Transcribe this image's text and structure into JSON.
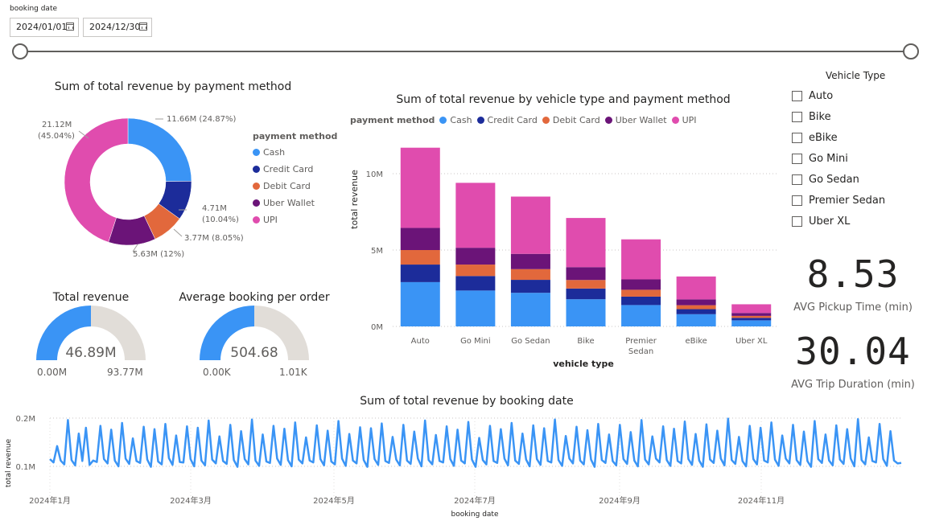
{
  "slicer": {
    "title": "booking date",
    "start_date": "2024/01/01",
    "end_date": "2024/12/30"
  },
  "colors": {
    "Cash": "#3a94f5",
    "Credit Card": "#1c2c9a",
    "Debit Card": "#e2683c",
    "Uber Wallet": "#6b1478",
    "UPI": "#e04cae",
    "gauge_track": "#e1ddd8",
    "gauge_fill": "#3a94f5"
  },
  "donut": {
    "title": "Sum of total revenue by payment method",
    "legend_title": "payment method",
    "legend": [
      "Cash",
      "Credit Card",
      "Debit Card",
      "Uber Wallet",
      "UPI"
    ],
    "labels": {
      "cash": "11.66M (24.87%)",
      "credit_line1": "4.71M",
      "credit_line2": "(10.04%)",
      "debit": "3.77M (8.05%)",
      "wallet": "5.63M (12%)",
      "upi_line1": "21.12M",
      "upi_line2": "(45.04%)"
    }
  },
  "gauges": {
    "revenue": {
      "title": "Total revenue",
      "value_label": "46.89M",
      "min_label": "0.00M",
      "max_label": "93.77M",
      "fraction": 0.5
    },
    "booking": {
      "title": "Average booking per order",
      "value_label": "504.68",
      "min_label": "0.00K",
      "max_label": "1.01K",
      "fraction": 0.5
    }
  },
  "bar": {
    "title": "Sum of total revenue by vehicle type and payment method",
    "legend_title": "payment method",
    "ylabel": "total revenue",
    "xlabel": "vehicle type",
    "yticks": [
      "0M",
      "5M",
      "10M"
    ],
    "categories": [
      [
        "Auto"
      ],
      [
        "Go Mini"
      ],
      [
        "Go Sedan"
      ],
      [
        "Bike"
      ],
      [
        "Premier",
        "Sedan"
      ],
      [
        "eBike"
      ],
      [
        "Uber XL"
      ]
    ]
  },
  "vehicle_slicer": {
    "title": "Vehicle Type",
    "options": [
      "Auto",
      "Bike",
      "eBike",
      "Go Mini",
      "Go Sedan",
      "Premier Sedan",
      "Uber XL"
    ]
  },
  "cards": {
    "pickup": {
      "value": "8.53",
      "label": "AVG Pickup Time (min)"
    },
    "trip": {
      "value": "30.04",
      "label": "AVG Trip Duration (min)"
    }
  },
  "line": {
    "title": "Sum of total revenue by booking date",
    "ylabel": "total revenue",
    "xlabel": "booking date",
    "yticks": [
      "0.1M",
      "0.2M"
    ],
    "xticks": [
      "2024年1月",
      "2024年3月",
      "2024年5月",
      "2024年7月",
      "2024年9月",
      "2024年11月"
    ]
  },
  "chart_data": [
    {
      "type": "pie",
      "title": "Sum of total revenue by payment method",
      "categories": [
        "Cash",
        "Credit Card",
        "Debit Card",
        "Uber Wallet",
        "UPI"
      ],
      "values": [
        11.66,
        4.71,
        3.77,
        5.63,
        21.12
      ],
      "unit": "M"
    },
    {
      "type": "bar",
      "stacked": true,
      "title": "Sum of total revenue by vehicle type and payment method",
      "xlabel": "vehicle type",
      "ylabel": "total revenue",
      "categories": [
        "Auto",
        "Go Mini",
        "Go Sedan",
        "Bike",
        "Premier Sedan",
        "eBike",
        "Uber XL"
      ],
      "ylim": [
        0,
        12
      ],
      "unit": "M",
      "series": [
        {
          "name": "Cash",
          "values": [
            2.9,
            2.35,
            2.2,
            1.78,
            1.4,
            0.8,
            0.4
          ]
        },
        {
          "name": "Credit Card",
          "values": [
            1.15,
            0.95,
            0.85,
            0.7,
            0.55,
            0.33,
            0.16
          ]
        },
        {
          "name": "Debit Card",
          "values": [
            0.95,
            0.75,
            0.7,
            0.56,
            0.45,
            0.26,
            0.13
          ]
        },
        {
          "name": "Uber Wallet",
          "values": [
            1.45,
            1.1,
            1.0,
            0.84,
            0.68,
            0.38,
            0.19
          ]
        },
        {
          "name": "UPI",
          "values": [
            5.25,
            4.25,
            3.75,
            3.22,
            2.62,
            1.5,
            0.57
          ]
        }
      ],
      "legend": "top"
    },
    {
      "type": "line",
      "title": "Sum of total revenue by booking date",
      "xlabel": "booking date",
      "ylabel": "total revenue",
      "x_range": [
        "2024-01-01",
        "2024-12-30"
      ],
      "ylim": [
        0.07,
        0.2
      ],
      "unit": "M",
      "values": [
        0.115,
        0.108,
        0.142,
        0.112,
        0.104,
        0.196,
        0.113,
        0.102,
        0.168,
        0.111,
        0.18,
        0.103,
        0.112,
        0.109,
        0.184,
        0.115,
        0.106,
        0.176,
        0.112,
        0.1,
        0.19,
        0.116,
        0.105,
        0.158,
        0.111,
        0.107,
        0.182,
        0.114,
        0.099,
        0.177,
        0.11,
        0.104,
        0.188,
        0.117,
        0.103,
        0.164,
        0.109,
        0.108,
        0.183,
        0.115,
        0.1,
        0.18,
        0.112,
        0.102,
        0.195,
        0.114,
        0.106,
        0.162,
        0.111,
        0.105,
        0.186,
        0.113,
        0.099,
        0.173,
        0.115,
        0.104,
        0.197,
        0.112,
        0.101,
        0.166,
        0.11,
        0.107,
        0.184,
        0.116,
        0.103,
        0.178,
        0.113,
        0.1,
        0.191,
        0.114,
        0.106,
        0.16,
        0.112,
        0.108,
        0.185,
        0.115,
        0.102,
        0.174,
        0.11,
        0.104,
        0.194,
        0.116,
        0.101,
        0.167,
        0.112,
        0.106,
        0.181,
        0.113,
        0.099,
        0.179,
        0.115,
        0.103,
        0.189,
        0.111,
        0.107,
        0.161,
        0.114,
        0.102,
        0.186,
        0.112,
        0.105,
        0.172,
        0.116,
        0.1,
        0.195,
        0.113,
        0.104,
        0.165,
        0.111,
        0.108,
        0.183,
        0.115,
        0.101,
        0.176,
        0.112,
        0.106,
        0.192,
        0.114,
        0.099,
        0.159,
        0.113,
        0.104,
        0.184,
        0.111,
        0.107,
        0.177,
        0.116,
        0.102,
        0.19,
        0.112,
        0.105,
        0.168,
        0.114,
        0.1,
        0.185,
        0.115,
        0.103,
        0.179,
        0.111,
        0.108,
        0.197,
        0.113,
        0.101,
        0.163,
        0.116,
        0.106,
        0.182,
        0.112,
        0.104,
        0.175,
        0.114,
        0.099,
        0.188,
        0.113,
        0.107,
        0.166,
        0.111,
        0.102,
        0.186,
        0.115,
        0.105,
        0.171,
        0.112,
        0.1,
        0.196,
        0.114,
        0.104,
        0.162,
        0.116,
        0.108,
        0.183,
        0.113,
        0.101,
        0.178,
        0.111,
        0.106,
        0.193,
        0.115,
        0.103,
        0.167,
        0.112,
        0.099,
        0.187,
        0.114,
        0.107,
        0.174,
        0.116,
        0.102,
        0.199,
        0.113,
        0.105,
        0.161,
        0.111,
        0.1,
        0.184,
        0.115,
        0.104,
        0.18,
        0.112,
        0.108,
        0.191,
        0.114,
        0.101,
        0.164,
        0.116,
        0.106,
        0.186,
        0.113,
        0.103,
        0.172,
        0.111,
        0.099,
        0.194,
        0.115,
        0.107,
        0.166,
        0.112,
        0.102,
        0.185,
        0.114,
        0.105,
        0.177,
        0.116,
        0.1,
        0.198,
        0.113,
        0.104,
        0.16,
        0.111,
        0.108,
        0.188,
        0.115,
        0.101,
        0.173,
        0.112,
        0.106,
        0.107
      ]
    }
  ]
}
